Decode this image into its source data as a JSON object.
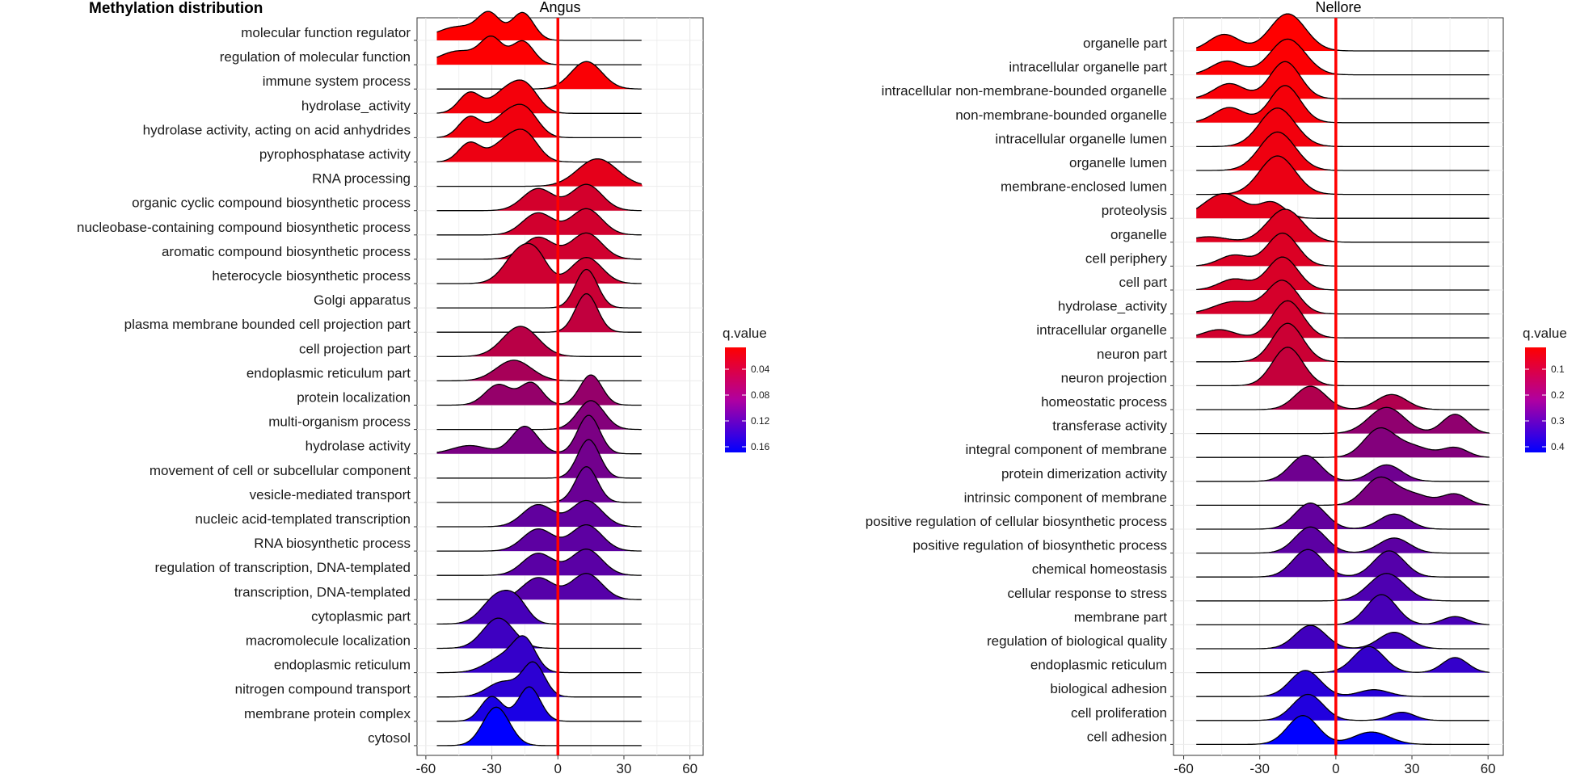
{
  "figure_title": "Methylation distribution",
  "chart_data": [
    {
      "type": "ridgeline",
      "title": "Angus",
      "x_ticks": [
        -60,
        -30,
        0,
        30,
        60
      ],
      "xlim": [
        -64,
        66
      ],
      "vline": 0,
      "legend": {
        "title": "q.value",
        "ticks": [
          "0.04",
          "0.08",
          "0.12",
          "0.16"
        ],
        "low_color": "#ff0000",
        "high_color": "#0000ff",
        "placement": "right"
      },
      "categories": [
        {
          "label": "molecular function regulator",
          "q": 0.02,
          "peaks": [
            [
              -45,
              10,
              0.5
            ],
            [
              -31,
              5,
              0.85
            ],
            [
              -16,
              5,
              1.0
            ]
          ]
        },
        {
          "label": "regulation of molecular function",
          "q": 0.021,
          "peaks": [
            [
              -45,
              9,
              0.5
            ],
            [
              -30,
              5,
              0.9
            ],
            [
              -16,
              5,
              0.85
            ]
          ]
        },
        {
          "label": "immune system process",
          "q": 0.023,
          "peaks": [
            [
              13,
              7,
              1.0
            ]
          ]
        },
        {
          "label": "hydrolase_activity",
          "q": 0.026,
          "peaks": [
            [
              -40,
              5,
              0.75
            ],
            [
              -25,
              6,
              0.65
            ],
            [
              -15,
              6,
              1.0
            ]
          ]
        },
        {
          "label": "hydrolase activity, acting on acid anhydrides",
          "q": 0.028,
          "peaks": [
            [
              -40,
              5,
              0.75
            ],
            [
              -25,
              6,
              0.65
            ],
            [
              -15,
              6,
              1.0
            ]
          ]
        },
        {
          "label": "pyrophosphatase activity",
          "q": 0.03,
          "peaks": [
            [
              -40,
              5,
              0.7
            ],
            [
              -25,
              6,
              0.6
            ],
            [
              -15,
              6,
              1.0
            ]
          ]
        },
        {
          "label": "RNA processing",
          "q": 0.035,
          "peaks": [
            [
              18,
              9,
              1.0
            ]
          ]
        },
        {
          "label": "organic cyclic compound biosynthetic process",
          "q": 0.045,
          "peaks": [
            [
              -9,
              7,
              0.8
            ],
            [
              13,
              7,
              0.95
            ]
          ]
        },
        {
          "label": "nucleobase-containing compound biosynthetic process",
          "q": 0.046,
          "peaks": [
            [
              -9,
              7,
              0.8
            ],
            [
              13,
              7,
              0.95
            ]
          ]
        },
        {
          "label": "aromatic compound biosynthetic process",
          "q": 0.047,
          "peaks": [
            [
              -9,
              7,
              0.8
            ],
            [
              13,
              7,
              0.95
            ]
          ]
        },
        {
          "label": "heterocycle biosynthetic process",
          "q": 0.048,
          "peaks": [
            [
              -17,
              7,
              1.2
            ],
            [
              -9,
              5,
              0.6
            ],
            [
              13,
              7,
              0.95
            ]
          ]
        },
        {
          "label": "Golgi apparatus",
          "q": 0.05,
          "peaks": [
            [
              13,
              5,
              1.4
            ]
          ]
        },
        {
          "label": "plasma membrane bounded cell projection part",
          "q": 0.055,
          "peaks": [
            [
              13,
              5,
              1.4
            ]
          ]
        },
        {
          "label": "cell projection part",
          "q": 0.06,
          "peaks": [
            [
              -17,
              8,
              1.1
            ]
          ]
        },
        {
          "label": "endoplasmic reticulum part",
          "q": 0.07,
          "peaks": [
            [
              -20,
              8,
              0.75
            ]
          ]
        },
        {
          "label": "protein localization",
          "q": 0.08,
          "peaks": [
            [
              -27,
              6,
              0.75
            ],
            [
              -12,
              5,
              0.8
            ],
            [
              15,
              5,
              1.1
            ]
          ]
        },
        {
          "label": "multi-organism process",
          "q": 0.09,
          "peaks": [
            [
              15,
              6,
              1.05
            ]
          ]
        },
        {
          "label": "hydrolase activity",
          "q": 0.095,
          "peaks": [
            [
              -40,
              8,
              0.3
            ],
            [
              -15,
              6,
              1.0
            ],
            [
              14,
              5,
              1.4
            ]
          ]
        },
        {
          "label": "movement of cell or subcellular component",
          "q": 0.1,
          "peaks": [
            [
              14,
              5,
              1.4
            ]
          ]
        },
        {
          "label": "vesicle-mediated transport",
          "q": 0.105,
          "peaks": [
            [
              13,
              5,
              1.3
            ]
          ]
        },
        {
          "label": "nucleic acid-templated transcription",
          "q": 0.11,
          "peaks": [
            [
              -9,
              7,
              0.8
            ],
            [
              13,
              7,
              0.95
            ]
          ]
        },
        {
          "label": "RNA biosynthetic process",
          "q": 0.112,
          "peaks": [
            [
              -9,
              7,
              0.8
            ],
            [
              13,
              7,
              0.95
            ]
          ]
        },
        {
          "label": "regulation of transcription, DNA-templated",
          "q": 0.114,
          "peaks": [
            [
              -9,
              7,
              0.8
            ],
            [
              13,
              7,
              0.95
            ]
          ]
        },
        {
          "label": "transcription, DNA-templated",
          "q": 0.116,
          "peaks": [
            [
              -9,
              7,
              0.8
            ],
            [
              13,
              7,
              0.95
            ]
          ]
        },
        {
          "label": "cytoplasmic part",
          "q": 0.125,
          "peaks": [
            [
              -27,
              7,
              1.05
            ],
            [
              -18,
              5,
              0.55
            ]
          ]
        },
        {
          "label": "macromolecule localization",
          "q": 0.13,
          "peaks": [
            [
              -27,
              7,
              1.1
            ]
          ]
        },
        {
          "label": "endoplasmic reticulum",
          "q": 0.135,
          "peaks": [
            [
              -24,
              8,
              0.6
            ],
            [
              -15,
              5,
              1.0
            ]
          ]
        },
        {
          "label": "nitrogen compound transport",
          "q": 0.14,
          "peaks": [
            [
              -25,
              7,
              0.55
            ],
            [
              -11,
              5,
              1.2
            ]
          ]
        },
        {
          "label": "membrane protein complex",
          "q": 0.15,
          "peaks": [
            [
              -30,
              5,
              0.9
            ],
            [
              -13,
              5,
              1.25
            ]
          ]
        },
        {
          "label": "cytosol",
          "q": 0.165,
          "peaks": [
            [
              -28,
              6,
              1.4
            ]
          ]
        }
      ]
    },
    {
      "type": "ridgeline",
      "title": "Nellore",
      "x_ticks": [
        -60,
        -30,
        0,
        30,
        60
      ],
      "xlim": [
        -64,
        66
      ],
      "vline": 0,
      "legend": {
        "title": "q.value",
        "ticks": [
          "0.1",
          "0.2",
          "0.3",
          "0.4"
        ],
        "low_color": "#ff0000",
        "high_color": "#0000ff",
        "placement": "right"
      },
      "categories": [
        {
          "label": "organelle part",
          "q": 0.03,
          "peaks": [
            [
              -44,
              6,
              0.6
            ],
            [
              -19,
              7,
              1.35
            ]
          ]
        },
        {
          "label": "intracellular organelle part",
          "q": 0.035,
          "peaks": [
            [
              -43,
              6,
              0.5
            ],
            [
              -19,
              7,
              1.3
            ]
          ]
        },
        {
          "label": "intracellular non-membrane-bounded organelle",
          "q": 0.04,
          "peaks": [
            [
              -42,
              6,
              0.55
            ],
            [
              -20,
              6,
              1.35
            ]
          ]
        },
        {
          "label": "non-membrane-bounded organelle",
          "q": 0.045,
          "peaks": [
            [
              -42,
              6,
              0.55
            ],
            [
              -20,
              6,
              1.35
            ]
          ]
        },
        {
          "label": "intracellular organelle lumen",
          "q": 0.05,
          "peaks": [
            [
              -23,
              7,
              1.4
            ]
          ]
        },
        {
          "label": "organelle lumen",
          "q": 0.055,
          "peaks": [
            [
              -23,
              7,
              1.4
            ]
          ]
        },
        {
          "label": "membrane-enclosed lumen",
          "q": 0.06,
          "peaks": [
            [
              -23,
              7,
              1.4
            ]
          ]
        },
        {
          "label": "proteolysis",
          "q": 0.07,
          "peaks": [
            [
              -44,
              8,
              0.9
            ],
            [
              -25,
              5,
              0.55
            ]
          ]
        },
        {
          "label": "organelle",
          "q": 0.08,
          "peaks": [
            [
              -50,
              7,
              0.2
            ],
            [
              -20,
              7,
              1.2
            ]
          ]
        },
        {
          "label": "cell periphery",
          "q": 0.085,
          "peaks": [
            [
              -40,
              6,
              0.4
            ],
            [
              -21,
              6,
              1.2
            ]
          ]
        },
        {
          "label": "cell part",
          "q": 0.09,
          "peaks": [
            [
              -40,
              6,
              0.4
            ],
            [
              -21,
              6,
              1.2
            ]
          ]
        },
        {
          "label": "hydrolase_activity",
          "q": 0.095,
          "peaks": [
            [
              -40,
              8,
              0.45
            ],
            [
              -21,
              6,
              1.2
            ]
          ]
        },
        {
          "label": "intracellular organelle",
          "q": 0.1,
          "peaks": [
            [
              -46,
              6,
              0.3
            ],
            [
              -19,
              6,
              1.35
            ]
          ]
        },
        {
          "label": "neuron part",
          "q": 0.11,
          "peaks": [
            [
              -19,
              6,
              1.4
            ]
          ]
        },
        {
          "label": "neuron projection",
          "q": 0.12,
          "peaks": [
            [
              -19,
              6,
              1.4
            ]
          ]
        },
        {
          "label": "homeostatic process",
          "q": 0.15,
          "peaks": [
            [
              -10,
              6,
              0.85
            ],
            [
              22,
              6,
              0.55
            ]
          ]
        },
        {
          "label": "transferase activity",
          "q": 0.2,
          "peaks": [
            [
              20,
              7,
              0.95
            ],
            [
              47,
              5,
              0.7
            ]
          ]
        },
        {
          "label": "integral component of membrane",
          "q": 0.22,
          "peaks": [
            [
              17,
              6,
              1.0
            ],
            [
              30,
              7,
              0.4
            ],
            [
              47,
              5,
              0.35
            ]
          ]
        },
        {
          "label": "protein dimerization activity",
          "q": 0.25,
          "peaks": [
            [
              -12,
              6,
              0.95
            ],
            [
              20,
              6,
              0.6
            ]
          ]
        },
        {
          "label": "intrinsic component of membrane",
          "q": 0.23,
          "peaks": [
            [
              17,
              6,
              0.95
            ],
            [
              30,
              7,
              0.4
            ],
            [
              47,
              5,
              0.4
            ]
          ]
        },
        {
          "label": "positive regulation of cellular biosynthetic process",
          "q": 0.27,
          "peaks": [
            [
              -10,
              6,
              0.95
            ],
            [
              23,
              6,
              0.55
            ]
          ]
        },
        {
          "label": "positive regulation of biosynthetic process",
          "q": 0.28,
          "peaks": [
            [
              -10,
              6,
              0.95
            ],
            [
              23,
              6,
              0.55
            ]
          ]
        },
        {
          "label": "chemical homeostasis",
          "q": 0.29,
          "peaks": [
            [
              -11,
              6,
              1.0
            ],
            [
              21,
              6,
              0.95
            ]
          ]
        },
        {
          "label": "cellular response to stress",
          "q": 0.3,
          "peaks": [
            [
              20,
              7,
              1.0
            ]
          ]
        },
        {
          "label": "membrane part",
          "q": 0.31,
          "peaks": [
            [
              18,
              6,
              1.1
            ],
            [
              47,
              5,
              0.3
            ]
          ]
        },
        {
          "label": "regulation of biological quality",
          "q": 0.32,
          "peaks": [
            [
              -10,
              6,
              0.85
            ],
            [
              23,
              6,
              0.6
            ]
          ]
        },
        {
          "label": "endoplasmic reticulum",
          "q": 0.34,
          "peaks": [
            [
              13,
              6,
              0.95
            ],
            [
              47,
              5,
              0.55
            ]
          ]
        },
        {
          "label": "biological adhesion",
          "q": 0.36,
          "peaks": [
            [
              -12,
              6,
              0.95
            ],
            [
              15,
              6,
              0.25
            ]
          ]
        },
        {
          "label": "cell proliferation",
          "q": 0.37,
          "peaks": [
            [
              -11,
              6,
              0.95
            ],
            [
              26,
              5,
              0.3
            ]
          ]
        },
        {
          "label": "cell adhesion",
          "q": 0.42,
          "peaks": [
            [
              -13,
              6,
              1.05
            ],
            [
              14,
              7,
              0.45
            ]
          ]
        }
      ]
    }
  ]
}
